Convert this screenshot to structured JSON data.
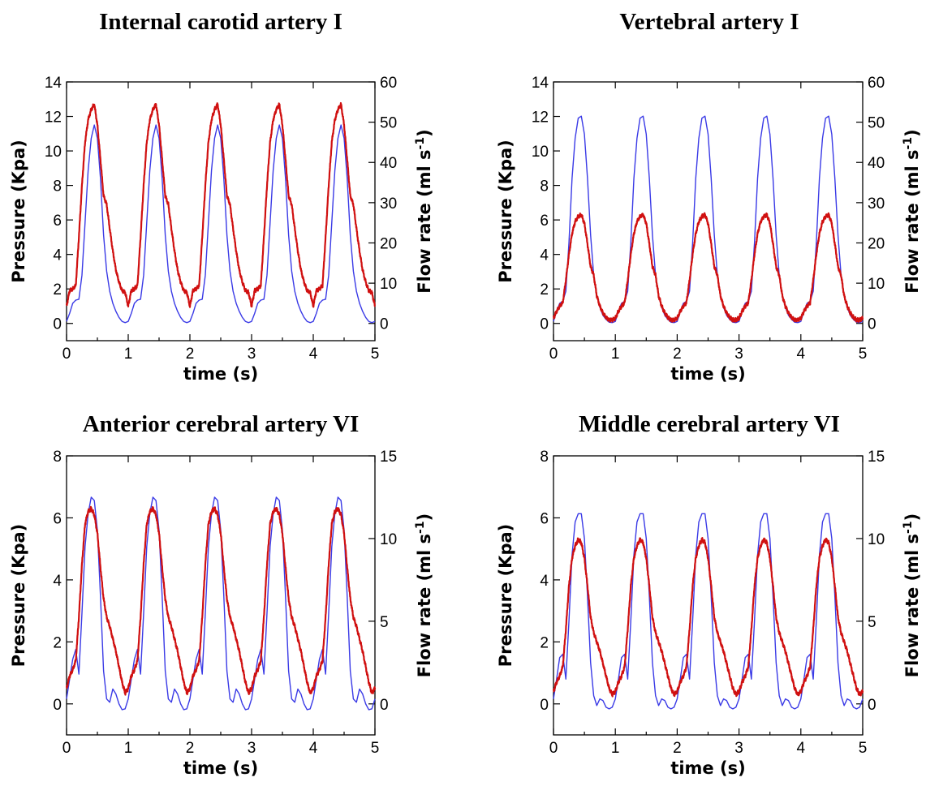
{
  "chart_data": [
    {
      "type": "line",
      "title": "Internal carotid artery I",
      "xlabel": "time (s)",
      "ylabel": "Pressure (Kpa)",
      "y2label": "Flow rate (ml s",
      "y2label_sup": "-1",
      "y2label_close": ")",
      "xlim": [
        0,
        5
      ],
      "ylim": [
        -1,
        14
      ],
      "y2lim": [
        -4.2857,
        60
      ],
      "xticks": [
        "0",
        "1",
        "2",
        "3",
        "4",
        "5"
      ],
      "yticks": [
        "0",
        "2",
        "4",
        "6",
        "8",
        "10",
        "12",
        "14"
      ],
      "y2ticks": [
        "0",
        "10",
        "20",
        "30",
        "40",
        "50",
        "60"
      ],
      "colors": {
        "pressure": "#d01010",
        "flow": "#3a3ae6"
      },
      "series": [
        {
          "axis": "left",
          "x": [
            0,
            0.05,
            0.1,
            0.15,
            0.2,
            0.25,
            0.3,
            0.35,
            0.4,
            0.45,
            0.5,
            0.55,
            0.6,
            0.65,
            0.7,
            0.75,
            0.8,
            0.85,
            0.9,
            0.95,
            1.0
          ],
          "y": [
            1.0,
            1.9,
            2.0,
            2.2,
            5.0,
            8.0,
            10.5,
            11.8,
            12.4,
            12.7,
            11.5,
            9.5,
            7.4,
            6.9,
            5.5,
            4.2,
            3.1,
            2.4,
            1.9,
            1.8,
            1.0
          ]
        },
        {
          "axis": "right",
          "x": [
            0,
            0.05,
            0.1,
            0.15,
            0.2,
            0.25,
            0.3,
            0.35,
            0.4,
            0.45,
            0.5,
            0.55,
            0.6,
            0.65,
            0.7,
            0.75,
            0.8,
            0.85,
            0.9,
            0.95,
            1.0
          ],
          "y": [
            0.5,
            2.5,
            5.0,
            5.8,
            6.0,
            12.0,
            25.0,
            38.0,
            46.0,
            49.3,
            46.0,
            36.0,
            22.0,
            13.0,
            8.0,
            5.0,
            3.0,
            1.5,
            0.5,
            0.2,
            0.5
          ]
        }
      ]
    },
    {
      "type": "line",
      "title": "Vertebral artery I",
      "xlabel": "time (s)",
      "ylabel": "Pressure (Kpa)",
      "y2label": "Flow rate (ml s",
      "y2label_sup": "-1",
      "y2label_close": ")",
      "xlim": [
        0,
        5
      ],
      "ylim": [
        -1,
        14
      ],
      "y2lim": [
        -4.2857,
        60
      ],
      "xticks": [
        "0",
        "1",
        "2",
        "3",
        "4",
        "5"
      ],
      "yticks": [
        "0",
        "2",
        "4",
        "6",
        "8",
        "10",
        "12",
        "14"
      ],
      "y2ticks": [
        "0",
        "10",
        "20",
        "30",
        "40",
        "50",
        "60"
      ],
      "colors": {
        "pressure": "#d01010",
        "flow": "#3a3ae6"
      },
      "series": [
        {
          "axis": "left",
          "x": [
            0,
            0.05,
            0.1,
            0.15,
            0.2,
            0.25,
            0.3,
            0.35,
            0.4,
            0.45,
            0.5,
            0.55,
            0.6,
            0.65,
            0.7,
            0.75,
            0.8,
            0.85,
            0.9,
            0.95,
            1.0
          ],
          "y": [
            0.3,
            0.7,
            1.0,
            1.2,
            2.5,
            4.0,
            5.2,
            5.9,
            6.2,
            6.3,
            5.8,
            4.6,
            3.3,
            2.8,
            1.6,
            1.0,
            0.6,
            0.35,
            0.2,
            0.2,
            0.3
          ]
        },
        {
          "axis": "right",
          "x": [
            0,
            0.05,
            0.1,
            0.15,
            0.2,
            0.25,
            0.3,
            0.35,
            0.4,
            0.45,
            0.5,
            0.55,
            0.6,
            0.65,
            0.7,
            0.75,
            0.8,
            0.85,
            0.9,
            0.95,
            1.0
          ],
          "y": [
            0.5,
            3.0,
            5.0,
            5.5,
            8.0,
            20.0,
            36.0,
            46.0,
            51.0,
            51.5,
            47.0,
            36.0,
            22.0,
            12.0,
            7.0,
            4.0,
            2.0,
            1.0,
            0.3,
            0.2,
            0.5
          ]
        }
      ]
    },
    {
      "type": "line",
      "title": "Anterior cerebral artery VI",
      "xlabel": "time (s)",
      "ylabel": "Pressure (Kpa)",
      "y2label": "Flow rate (ml s",
      "y2label_sup": "-1",
      "y2label_close": ")",
      "xlim": [
        0,
        5
      ],
      "ylim": [
        -1,
        8
      ],
      "y2lim": [
        -1.875,
        15
      ],
      "xticks": [
        "0",
        "1",
        "2",
        "3",
        "4",
        "5"
      ],
      "yticks": [
        "0",
        "2",
        "4",
        "6",
        "8"
      ],
      "y2ticks": [
        "0",
        "5",
        "10",
        "15"
      ],
      "colors": {
        "pressure": "#d01010",
        "flow": "#3a3ae6"
      },
      "series": [
        {
          "axis": "left",
          "x": [
            0,
            0.05,
            0.1,
            0.15,
            0.2,
            0.25,
            0.3,
            0.35,
            0.4,
            0.45,
            0.5,
            0.55,
            0.6,
            0.65,
            0.7,
            0.75,
            0.8,
            0.85,
            0.9,
            0.95,
            1.0
          ],
          "y": [
            0.5,
            0.9,
            1.1,
            1.4,
            2.8,
            4.5,
            5.8,
            6.2,
            6.3,
            6.1,
            5.5,
            4.4,
            3.4,
            2.8,
            2.5,
            2.1,
            1.7,
            1.2,
            0.7,
            0.35,
            0.5
          ]
        },
        {
          "axis": "right",
          "x": [
            0,
            0.05,
            0.1,
            0.15,
            0.2,
            0.25,
            0.3,
            0.35,
            0.4,
            0.45,
            0.5,
            0.55,
            0.6,
            0.65,
            0.7,
            0.75,
            0.8,
            0.85,
            0.9,
            0.95,
            1.0
          ],
          "y": [
            0.3,
            1.5,
            2.7,
            3.3,
            1.8,
            5.5,
            9.5,
            11.5,
            12.5,
            12.3,
            10.5,
            6.5,
            2.0,
            0.3,
            0.1,
            0.9,
            0.6,
            0.0,
            -0.35,
            -0.3,
            0.3
          ]
        }
      ]
    },
    {
      "type": "line",
      "title": "Middle cerebral artery VI",
      "xlabel": "time (s)",
      "ylabel": "Pressure (Kpa)",
      "y2label": "Flow rate (ml s",
      "y2label_sup": "-1",
      "y2label_close": ")",
      "xlim": [
        0,
        5
      ],
      "ylim": [
        -1,
        8
      ],
      "y2lim": [
        -1.875,
        15
      ],
      "xticks": [
        "0",
        "1",
        "2",
        "3",
        "4",
        "5"
      ],
      "yticks": [
        "0",
        "2",
        "4",
        "6",
        "8"
      ],
      "y2ticks": [
        "0",
        "5",
        "10",
        "15"
      ],
      "colors": {
        "pressure": "#d01010",
        "flow": "#3a3ae6"
      },
      "series": [
        {
          "axis": "left",
          "x": [
            0,
            0.05,
            0.1,
            0.15,
            0.2,
            0.25,
            0.3,
            0.35,
            0.4,
            0.45,
            0.5,
            0.55,
            0.6,
            0.65,
            0.7,
            0.75,
            0.8,
            0.85,
            0.9,
            0.95,
            1.0
          ],
          "y": [
            0.4,
            0.7,
            0.9,
            1.2,
            2.4,
            3.8,
            4.7,
            5.1,
            5.3,
            5.2,
            4.7,
            3.8,
            2.8,
            2.3,
            2.0,
            1.7,
            1.3,
            0.9,
            0.5,
            0.3,
            0.4
          ]
        },
        {
          "axis": "right",
          "x": [
            0,
            0.05,
            0.1,
            0.15,
            0.2,
            0.25,
            0.3,
            0.35,
            0.4,
            0.45,
            0.5,
            0.55,
            0.6,
            0.65,
            0.7,
            0.75,
            0.8,
            0.85,
            0.9,
            0.95,
            1.0
          ],
          "y": [
            0.3,
            1.5,
            2.8,
            3.0,
            1.5,
            5.0,
            9.0,
            11.0,
            11.5,
            11.5,
            10.0,
            6.5,
            2.5,
            0.5,
            -0.1,
            0.3,
            0.2,
            -0.2,
            -0.3,
            -0.2,
            0.3
          ]
        }
      ]
    }
  ]
}
